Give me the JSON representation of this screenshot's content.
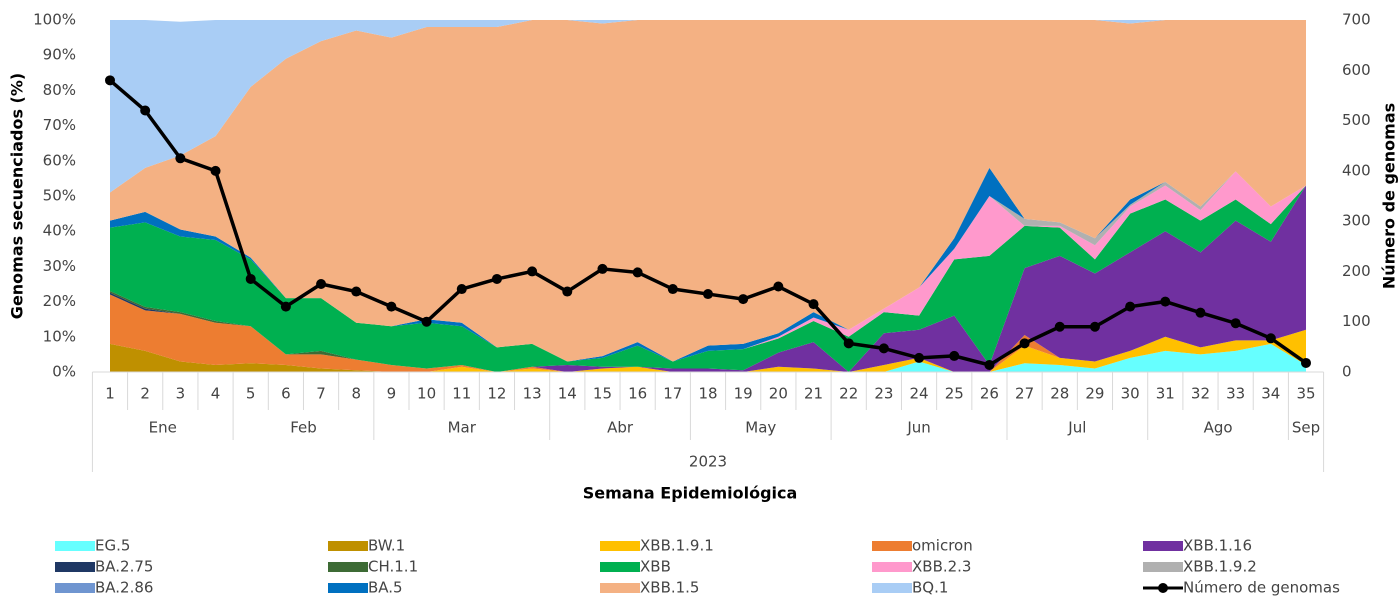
{
  "chart_data": {
    "type": "area",
    "x_label": "Semana Epidemiológica",
    "y_label": "Genomas secuenciados (%)",
    "y2_label": "Número de genomas",
    "categories": [
      "1",
      "2",
      "3",
      "4",
      "5",
      "6",
      "7",
      "8",
      "9",
      "10",
      "11",
      "12",
      "13",
      "14",
      "15",
      "16",
      "17",
      "18",
      "19",
      "20",
      "21",
      "22",
      "23",
      "24",
      "25",
      "26",
      "27",
      "28",
      "29",
      "30",
      "31",
      "32",
      "33",
      "34",
      "35"
    ],
    "months": [
      "Ene",
      null,
      null,
      null,
      "Feb",
      null,
      null,
      null,
      "Mar",
      null,
      null,
      null,
      null,
      "Abr",
      null,
      null,
      null,
      "May",
      null,
      null,
      null,
      "Jun",
      null,
      null,
      null,
      null,
      "Jul",
      null,
      null,
      null,
      "Ago",
      null,
      null,
      null,
      "Sep"
    ],
    "year": "2023",
    "ylim": [
      0,
      100
    ],
    "yticks": [
      {
        "value": 0,
        "label": "0%"
      },
      {
        "value": 10,
        "label": "10%"
      },
      {
        "value": 20,
        "label": "20%"
      },
      {
        "value": 30,
        "label": "30%"
      },
      {
        "value": 40,
        "label": "40%"
      },
      {
        "value": 50,
        "label": "50%"
      },
      {
        "value": 60,
        "label": "60%"
      },
      {
        "value": 70,
        "label": "70%"
      },
      {
        "value": 80,
        "label": "80%"
      },
      {
        "value": 90,
        "label": "90%"
      },
      {
        "value": 100,
        "label": "100%"
      }
    ],
    "y2lim": [
      0,
      700
    ],
    "y2ticks": [
      0,
      100,
      200,
      300,
      400,
      500,
      600,
      700
    ],
    "series": [
      {
        "name": "EG.5",
        "color": "#66ffff",
        "values": [
          0,
          0,
          0,
          0,
          0,
          0,
          0,
          0,
          0,
          0,
          0,
          0,
          0,
          0,
          0,
          0,
          0,
          0,
          0,
          0,
          0,
          0,
          0,
          3,
          0,
          0,
          2.5,
          2,
          1,
          4,
          6,
          5,
          6,
          8,
          2
        ]
      },
      {
        "name": "BW.1",
        "color": "#bf9000",
        "values": [
          8,
          6,
          3,
          2,
          2.5,
          2,
          1,
          0.5,
          0,
          0,
          0,
          0,
          0,
          0,
          0,
          0,
          0,
          0,
          0,
          0,
          0,
          0,
          0,
          0,
          0,
          0,
          0,
          0,
          0,
          0,
          0,
          0,
          0,
          0,
          0
        ]
      },
      {
        "name": "XBB.1.9.1",
        "color": "#ffc000",
        "values": [
          0,
          0,
          0,
          0,
          0,
          0,
          0,
          0,
          0,
          0,
          1.5,
          0,
          1,
          0,
          1,
          1.5,
          0,
          0,
          0,
          1.5,
          1,
          0,
          2,
          1,
          0,
          0,
          5,
          2,
          2,
          2,
          4,
          2,
          3,
          1,
          10
        ]
      },
      {
        "name": "omicron",
        "color": "#ed7d31",
        "values": [
          14,
          11.5,
          13.5,
          12,
          10.5,
          3,
          4,
          3,
          2,
          1,
          0.5,
          0,
          0.5,
          0,
          0,
          0,
          0,
          0,
          0,
          0,
          0,
          0,
          0,
          0,
          0,
          0,
          3,
          0,
          0,
          0,
          0,
          0,
          0,
          0,
          0
        ]
      },
      {
        "name": "XBB.1.16",
        "color": "#7030a0",
        "values": [
          0,
          0,
          0,
          0,
          0,
          0,
          0,
          0,
          0,
          0,
          0,
          0,
          0,
          2,
          0.5,
          0,
          1,
          1,
          0.5,
          4,
          7.5,
          0,
          9,
          8,
          16,
          2,
          19,
          29,
          25,
          28,
          30,
          27,
          34,
          28,
          41
        ]
      },
      {
        "name": "BA.2.75",
        "color": "#1f3864",
        "values": [
          0.5,
          0.5,
          0,
          0,
          0,
          0,
          0,
          0,
          0,
          0,
          0,
          0,
          0,
          0,
          0,
          0,
          0,
          0,
          0,
          0,
          0,
          0,
          0,
          0,
          0,
          0,
          0,
          0,
          0,
          0,
          0,
          0,
          0,
          0,
          0
        ]
      },
      {
        "name": "CH.1.1",
        "color": "#3d6b35",
        "values": [
          0.5,
          0.5,
          0.5,
          0.5,
          0,
          0,
          1,
          0,
          0,
          0,
          0,
          0,
          0,
          0,
          0,
          0,
          0,
          0,
          0,
          0,
          0,
          0,
          0,
          0,
          0,
          0,
          0,
          0,
          0,
          0,
          0,
          0,
          0,
          0,
          0
        ]
      },
      {
        "name": "XBB",
        "color": "#00b050",
        "values": [
          18,
          24,
          21.5,
          23,
          19,
          16,
          15,
          10.5,
          11,
          13,
          11,
          7,
          6.5,
          1,
          2.5,
          6,
          2,
          5,
          6,
          4,
          6,
          10,
          6,
          4,
          16,
          31,
          12,
          8,
          4,
          11,
          9,
          9,
          6,
          5,
          0
        ]
      },
      {
        "name": "XBB.2.3",
        "color": "#ff99cc",
        "values": [
          0,
          0,
          0,
          0,
          0,
          0,
          0,
          0,
          0,
          0,
          0,
          0,
          0,
          0,
          0,
          0,
          0,
          0,
          0,
          0.5,
          1,
          2,
          1,
          8,
          3,
          17,
          0,
          0.5,
          4,
          2,
          4,
          3,
          8,
          5,
          0
        ]
      },
      {
        "name": "XBB.1.9.2",
        "color": "#b0b0b0",
        "values": [
          0,
          0,
          0,
          0,
          0,
          0,
          0,
          0,
          0,
          0,
          0,
          0,
          0,
          0,
          0,
          0,
          0,
          0,
          0,
          0,
          0,
          0,
          0,
          0,
          0,
          0,
          2,
          1,
          2,
          0.5,
          1,
          1,
          0,
          0,
          0
        ]
      },
      {
        "name": "BA.2.86",
        "color": "#6f95d0",
        "values": [
          0,
          0,
          0,
          0,
          0,
          0,
          0,
          0,
          0,
          0,
          0,
          0,
          0,
          0,
          0,
          0,
          0,
          0,
          0,
          0,
          0,
          0,
          0,
          0,
          0,
          0,
          0,
          0,
          0,
          0,
          0,
          0,
          0,
          0,
          0
        ]
      },
      {
        "name": "BA.5",
        "color": "#0070c0",
        "values": [
          2,
          3,
          2,
          1,
          0.5,
          0,
          0,
          0,
          0,
          1,
          1,
          0,
          0,
          0,
          0.5,
          1,
          0,
          1.5,
          1.5,
          1,
          1.5,
          0,
          0,
          0,
          3,
          8,
          0,
          0,
          0,
          1.5,
          0,
          0,
          0,
          0,
          0
        ]
      },
      {
        "name": "XBB.1.5",
        "color": "#f4b183",
        "values": [
          8,
          12.5,
          21,
          28.5,
          48.5,
          68,
          73,
          83,
          82,
          83,
          84,
          91,
          92,
          97,
          94.5,
          91.5,
          97,
          92.5,
          92,
          89,
          83,
          88,
          82,
          76,
          62,
          42,
          56.5,
          57.5,
          62,
          50,
          46,
          53,
          43,
          53,
          47
        ]
      },
      {
        "name": "BQ.1",
        "color": "#a9cdf5",
        "values": [
          49,
          42,
          38,
          33,
          19,
          11,
          6,
          3,
          5,
          2,
          2,
          2,
          0,
          0,
          1,
          0,
          0,
          0,
          0,
          0,
          0,
          0,
          0,
          0,
          0,
          0,
          0,
          0,
          0,
          1,
          0,
          0,
          0,
          0,
          0
        ]
      },
      {
        "name": "Número de genomas",
        "color": "#000000",
        "type": "line",
        "axis": "y2",
        "values": [
          580,
          520,
          425,
          400,
          185,
          130,
          175,
          160,
          130,
          100,
          165,
          185,
          200,
          160,
          205,
          198,
          165,
          155,
          145,
          170,
          135,
          57,
          47,
          28,
          32,
          14,
          57,
          90,
          90,
          130,
          140,
          118,
          97,
          67,
          18
        ]
      }
    ]
  }
}
